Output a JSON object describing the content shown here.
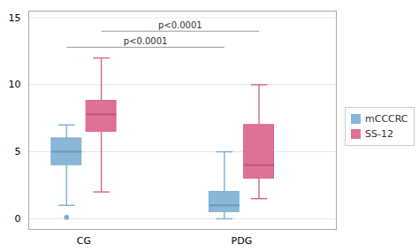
{
  "chart_data": {
    "type": "box",
    "categories": [
      "CG",
      "PDG"
    ],
    "series": [
      {
        "name": "mCCCRC",
        "color": "#7bafd4",
        "values": [
          {
            "whislo": 1.0,
            "q1": 4.0,
            "med": 5.0,
            "q3": 6.0,
            "whishi": 7.0,
            "fliers": [
              0.1
            ]
          },
          {
            "whislo": 0.0,
            "q1": 0.5,
            "med": 1.0,
            "q3": 2.0,
            "whishi": 5.0,
            "fliers": []
          }
        ]
      },
      {
        "name": "SS-12",
        "color": "#d9638a",
        "values": [
          {
            "whislo": 2.0,
            "q1": 6.5,
            "med": 7.8,
            "q3": 8.8,
            "whishi": 12.0,
            "fliers": []
          },
          {
            "whislo": 1.5,
            "q1": 3.0,
            "med": 4.0,
            "q3": 7.0,
            "whishi": 10.0,
            "fliers": []
          }
        ]
      }
    ],
    "annotations": [
      {
        "text": "p<0.0001",
        "y": 12.8,
        "from": {
          "category": "CG",
          "series": "mCCCRC"
        },
        "to": {
          "category": "PDG",
          "series": "mCCCRC"
        }
      },
      {
        "text": "p<0.0001",
        "y": 14.0,
        "from": {
          "category": "CG",
          "series": "SS-12"
        },
        "to": {
          "category": "PDG",
          "series": "SS-12"
        }
      }
    ],
    "ylim": [
      -0.8,
      15.5
    ],
    "yticks": [
      0,
      5,
      10,
      15
    ],
    "grid": true,
    "legend": "right"
  }
}
